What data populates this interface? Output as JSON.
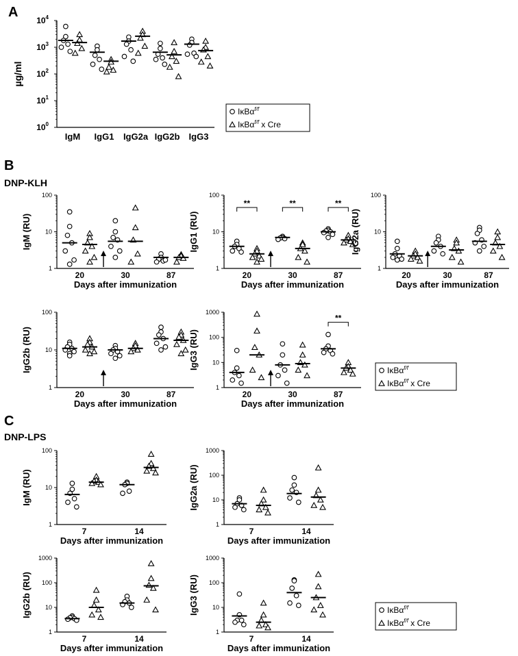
{
  "figure": {
    "panel_labels": [
      "A",
      "B",
      "C"
    ],
    "section_titles": {
      "klh": "DNP-KLH",
      "lps": "DNP-LPS"
    }
  },
  "legend": {
    "group1_main": "IκBα",
    "group1_sup": "f/f",
    "group2_main": "IκBα",
    "group2_sup": "f/f",
    "group2_suffix": " x Cre",
    "group1_symbol": "circle",
    "group2_symbol": "triangle"
  },
  "chart_data": [
    {
      "id": "A",
      "type": "scatter",
      "title": "",
      "ylabel": "µg/ml",
      "xlabel": "",
      "yscale": "log",
      "ylim": [
        1,
        10000
      ],
      "yticks": [
        {
          "base": "10",
          "exp": "0"
        },
        {
          "base": "10",
          "exp": "1"
        },
        {
          "base": "10",
          "exp": "2"
        },
        {
          "base": "10",
          "exp": "3"
        },
        {
          "base": "10",
          "exp": "4"
        }
      ],
      "categories": [
        "IgM",
        "IgG1",
        "IgG2a",
        "IgG2b",
        "IgG3"
      ],
      "groups": [
        {
          "symbol": "circle",
          "points": [
            [
              6000,
              2500,
              1800,
              1300,
              1000,
              700
            ],
            [
              1100,
              800,
              500,
              350,
              230,
              150
            ],
            [
              2400,
              1700,
              1300,
              800,
              450,
              300
            ],
            [
              1400,
              900,
              550,
              400,
              350,
              230
            ],
            [
              2000,
              1500,
              1200,
              600,
              550,
              450
            ]
          ],
          "medians": [
            1800,
            650,
            1700,
            650,
            1300
          ]
        },
        {
          "symbol": "triangle",
          "points": [
            [
              3000,
              1900,
              1400,
              900,
              600
            ],
            [
              350,
              280,
              180,
              140,
              120
            ],
            [
              4000,
              3000,
              2200,
              1100,
              600
            ],
            [
              1500,
              700,
              450,
              300,
              180,
              80
            ],
            [
              1700,
              1000,
              800,
              450,
              280,
              200
            ]
          ],
          "medians": [
            1500,
            300,
            2600,
            520,
            750
          ]
        }
      ]
    },
    {
      "id": "B-IgM",
      "type": "scatter",
      "ylabel": "IgM (RU)",
      "xlabel": "Days after immunization",
      "yscale": "log",
      "ylim": [
        1,
        100
      ],
      "yticks": [
        "1",
        "10",
        "100"
      ],
      "categories": [
        "20",
        "30",
        "87"
      ],
      "groups": [
        {
          "symbol": "circle",
          "points": [
            [
              35,
              14,
              8,
              5,
              3,
              1.7,
              1.3
            ],
            [
              20,
              10,
              7,
              6,
              4,
              3,
              2
            ],
            [
              2.5,
              2,
              1.8,
              1.6,
              1.5,
              1.7
            ]
          ],
          "medians": [
            5,
            5.5,
            2
          ]
        },
        {
          "symbol": "triangle",
          "points": [
            [
              9,
              7,
              5,
              4,
              3,
              2,
              1.5
            ],
            [
              45,
              13,
              6,
              2.5,
              1.5
            ],
            [
              2.4,
              2.2,
              2,
              1.9,
              1.5
            ]
          ],
          "medians": [
            4.5,
            5.5,
            2
          ]
        }
      ],
      "arrow_after": "20"
    },
    {
      "id": "B-IgG1",
      "type": "scatter",
      "ylabel": "IgG1 (RU)",
      "xlabel": "Days after immunization",
      "yscale": "log",
      "ylim": [
        1,
        100
      ],
      "yticks": [
        "1",
        "10",
        "100"
      ],
      "categories": [
        "20",
        "30",
        "87"
      ],
      "groups": [
        {
          "symbol": "circle",
          "points": [
            [
              5.5,
              4.5,
              4,
              3.5,
              3,
              2.8
            ],
            [
              7.5,
              7,
              6.8,
              6.5,
              6.2
            ],
            [
              12,
              11,
              10.5,
              10,
              9.5,
              8.5,
              7
            ]
          ],
          "medians": [
            4,
            7,
            10
          ]
        },
        {
          "symbol": "triangle",
          "points": [
            [
              3.5,
              3,
              2.5,
              2.2,
              2,
              1.8,
              1.5
            ],
            [
              5,
              4.5,
              3.5,
              3,
              2,
              1.5
            ],
            [
              8,
              6.5,
              6,
              5.5,
              5,
              4.5
            ]
          ],
          "medians": [
            2.5,
            3.5,
            6
          ]
        }
      ],
      "significance": [
        "**",
        "**",
        "**"
      ],
      "arrow_after": "20"
    },
    {
      "id": "B-IgG2a",
      "type": "scatter",
      "ylabel": "IgG2a (RU)",
      "xlabel": "Days after immunization",
      "yscale": "log",
      "ylim": [
        1,
        100
      ],
      "yticks": [
        "1",
        "10",
        "100"
      ],
      "categories": [
        "20",
        "30",
        "87"
      ],
      "groups": [
        {
          "symbol": "circle",
          "points": [
            [
              5.5,
              3.5,
              2.5,
              2.2,
              2,
              1.8,
              1.7
            ],
            [
              7.5,
              6,
              5,
              4,
              3,
              2.5
            ],
            [
              13,
              11,
              9,
              6,
              5,
              4,
              3
            ]
          ],
          "medians": [
            2.5,
            4,
            5.5
          ]
        },
        {
          "symbol": "triangle",
          "points": [
            [
              3,
              2.5,
              2.2,
              2,
              1.8,
              1.6
            ],
            [
              6,
              5,
              3.5,
              3,
              2,
              1.5
            ],
            [
              10,
              7,
              5,
              4,
              3,
              2
            ]
          ],
          "medians": [
            2.2,
            3.2,
            4.5
          ]
        }
      ],
      "arrow_after": "20"
    },
    {
      "id": "B-IgG2b",
      "type": "scatter",
      "ylabel": "IgG2b (RU)",
      "xlabel": "Days after immunization",
      "yscale": "log",
      "ylim": [
        1,
        100
      ],
      "yticks": [
        "1",
        "10",
        "100"
      ],
      "categories": [
        "20",
        "30",
        "87"
      ],
      "groups": [
        {
          "symbol": "circle",
          "points": [
            [
              16,
              14,
              12,
              11,
              10,
              9,
              8,
              7
            ],
            [
              13,
              11,
              10,
              9,
              8,
              7,
              6
            ],
            [
              40,
              30,
              25,
              20,
              15,
              12,
              10
            ]
          ],
          "medians": [
            11,
            10,
            20
          ]
        },
        {
          "symbol": "triangle",
          "points": [
            [
              20,
              16,
              14,
              12,
              10,
              9,
              8
            ],
            [
              15,
              13,
              11,
              10,
              9
            ],
            [
              30,
              25,
              22,
              18,
              14,
              10,
              8
            ]
          ],
          "medians": [
            12,
            11,
            18
          ]
        }
      ],
      "arrow_after": "20"
    },
    {
      "id": "B-IgG3",
      "type": "scatter",
      "ylabel": "IgG3 (RU)",
      "xlabel": "Days after immunization",
      "yscale": "log",
      "ylim": [
        1,
        1000
      ],
      "yticks": [
        "1",
        "10",
        "100",
        "1000"
      ],
      "categories": [
        "20",
        "30",
        "87"
      ],
      "groups": [
        {
          "symbol": "circle",
          "points": [
            [
              30,
              6,
              4,
              3,
              2,
              1.5
            ],
            [
              55,
              20,
              8,
              5,
              3,
              1.5
            ],
            [
              130,
              45,
              35,
              30,
              25,
              22
            ]
          ],
          "medians": [
            4,
            8,
            35
          ]
        },
        {
          "symbol": "triangle",
          "points": [
            [
              850,
              180,
              40,
              20,
              5,
              2.5
            ],
            [
              50,
              20,
              10,
              8,
              5,
              3
            ],
            [
              10,
              7,
              6,
              5,
              4,
              3.5
            ]
          ],
          "medians": [
            20,
            9,
            6
          ]
        }
      ],
      "significance": [
        "",
        "",
        "**"
      ],
      "arrow_after": "20"
    },
    {
      "id": "C-IgM",
      "type": "scatter",
      "ylabel": "IgM (RU)",
      "xlabel": "Days after immunization",
      "yscale": "log",
      "ylim": [
        1,
        100
      ],
      "yticks": [
        "1",
        "10",
        "100"
      ],
      "categories": [
        "7",
        "14"
      ],
      "groups": [
        {
          "symbol": "circle",
          "points": [
            [
              13,
              9,
              7,
              5,
              4,
              3
            ],
            [
              14,
              13,
              12,
              8,
              7
            ]
          ],
          "medians": [
            6.5,
            12
          ]
        },
        {
          "symbol": "triangle",
          "points": [
            [
              20,
              16,
              15,
              14,
              13,
              12
            ],
            [
              80,
              45,
              38,
              33,
              28,
              25
            ]
          ],
          "medians": [
            14,
            35
          ]
        }
      ]
    },
    {
      "id": "C-IgG2a",
      "type": "scatter",
      "ylabel": "IgG2a (RU)",
      "xlabel": "Days after immunization",
      "yscale": "log",
      "ylim": [
        1,
        1000
      ],
      "yticks": [
        "1",
        "10",
        "100",
        "1000"
      ],
      "categories": [
        "7",
        "14"
      ],
      "groups": [
        {
          "symbol": "circle",
          "points": [
            [
              12,
              10,
              7,
              6,
              5,
              4
            ],
            [
              80,
              40,
              25,
              20,
              12,
              8
            ]
          ],
          "medians": [
            7,
            18
          ]
        },
        {
          "symbol": "triangle",
          "points": [
            [
              25,
              10,
              7,
              5,
              4,
              3
            ],
            [
              200,
              25,
              15,
              10,
              6,
              5
            ]
          ],
          "medians": [
            6,
            13
          ]
        }
      ]
    },
    {
      "id": "C-IgG2b",
      "type": "scatter",
      "ylabel": "IgG2b (RU)",
      "xlabel": "Days after immunization",
      "yscale": "log",
      "ylim": [
        1,
        1000
      ],
      "yticks": [
        "1",
        "10",
        "100",
        "1000"
      ],
      "categories": [
        "7",
        "14"
      ],
      "groups": [
        {
          "symbol": "circle",
          "points": [
            [
              4.5,
              4,
              3.8,
              3.5,
              3.3,
              3
            ],
            [
              28,
              20,
              17,
              15,
              13,
              10
            ]
          ],
          "medians": [
            3.5,
            15
          ]
        },
        {
          "symbol": "triangle",
          "points": [
            [
              50,
              20,
              12,
              8,
              5,
              4
            ],
            [
              600,
              150,
              80,
              60,
              20,
              8
            ]
          ],
          "medians": [
            10,
            75
          ]
        }
      ]
    },
    {
      "id": "C-IgG3",
      "type": "scatter",
      "ylabel": "IgG3 (RU)",
      "xlabel": "Days after immunization",
      "yscale": "log",
      "ylim": [
        1,
        1000
      ],
      "yticks": [
        "1",
        "10",
        "100",
        "1000"
      ],
      "categories": [
        "7",
        "14"
      ],
      "groups": [
        {
          "symbol": "circle",
          "points": [
            [
              35,
              5,
              3,
              3,
              2.5,
              2
            ],
            [
              130,
              120,
              60,
              30,
              15,
              12
            ]
          ],
          "medians": [
            4.5,
            40
          ]
        },
        {
          "symbol": "triangle",
          "points": [
            [
              15,
              5,
              3,
              2,
              1.8,
              1.5
            ],
            [
              220,
              70,
              25,
              12,
              8,
              5
            ]
          ],
          "medians": [
            2.5,
            25
          ]
        }
      ]
    }
  ]
}
